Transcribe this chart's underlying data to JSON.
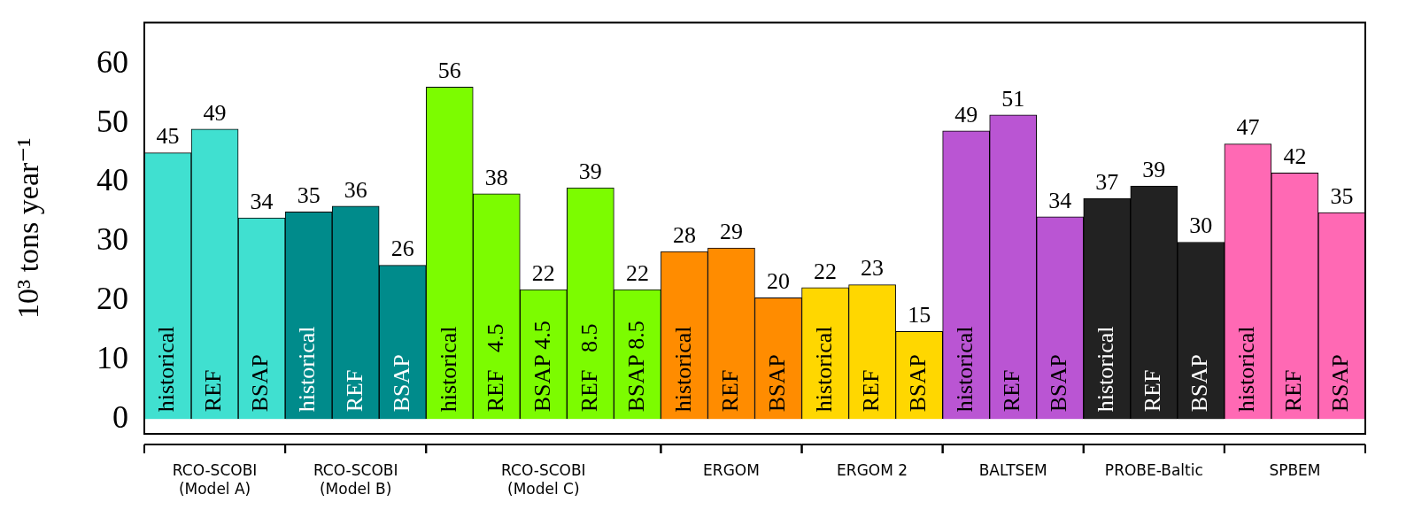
{
  "chart_data": {
    "type": "bar",
    "ylabel": "10³ tons year⁻¹",
    "categories": [
      "historical",
      "REF",
      "BSAP",
      "historical",
      "REF",
      "BSAP",
      "historical",
      "REF   4.5",
      "BSAP 4.5",
      "REF   8.5",
      "BSAP 8.5",
      "historical",
      "REF",
      "BSAP",
      "historical",
      "REF",
      "BSAP",
      "historical",
      "REF",
      "BSAP",
      "historical",
      "REF",
      "BSAP",
      "historical",
      "REF",
      "BSAP"
    ],
    "values": [
      45.0,
      49.0,
      34.0,
      35.0,
      36.0,
      26.0,
      56.1,
      38.1,
      21.9,
      39.1,
      21.9,
      28.3,
      28.9,
      20.5,
      22.2,
      22.7,
      14.8,
      48.7,
      51.4,
      34.2,
      37.3,
      39.4,
      29.9,
      46.5,
      41.6,
      34.9
    ],
    "value_labels": [
      "45",
      "49",
      "34",
      "35",
      "36",
      "26",
      "56",
      "38",
      "22",
      "39",
      "22",
      "28",
      "29",
      "20",
      "22",
      "23",
      "15",
      "49",
      "51",
      "34",
      "37",
      "39",
      "30",
      "47",
      "42",
      "35"
    ],
    "colors": [
      "#40e0d0",
      "#40e0d0",
      "#40e0d0",
      "#008b8b",
      "#008b8b",
      "#008b8b",
      "#7cfc00",
      "#7cfc00",
      "#7cfc00",
      "#7cfc00",
      "#7cfc00",
      "#ff8c00",
      "#ff8c00",
      "#ff8c00",
      "#ffd700",
      "#ffd700",
      "#ffd700",
      "#ba55d3",
      "#ba55d3",
      "#ba55d3",
      "#222222",
      "#222222",
      "#222222",
      "#ff69b4",
      "#ff69b4",
      "#ff69b4"
    ],
    "annotations": [
      "RCO-SCOBI\n(Model A)",
      "RCO-SCOBI\n(Model B)",
      "RCO-SCOBI\n(Model C)",
      "ERGOM",
      "ERGOM 2",
      "BALTSEM",
      "PROBE-Baltic",
      "SPBEM"
    ],
    "ylim": [
      -2.5,
      67
    ],
    "yticks": [
      0,
      10,
      20,
      30,
      40,
      50,
      60
    ]
  }
}
